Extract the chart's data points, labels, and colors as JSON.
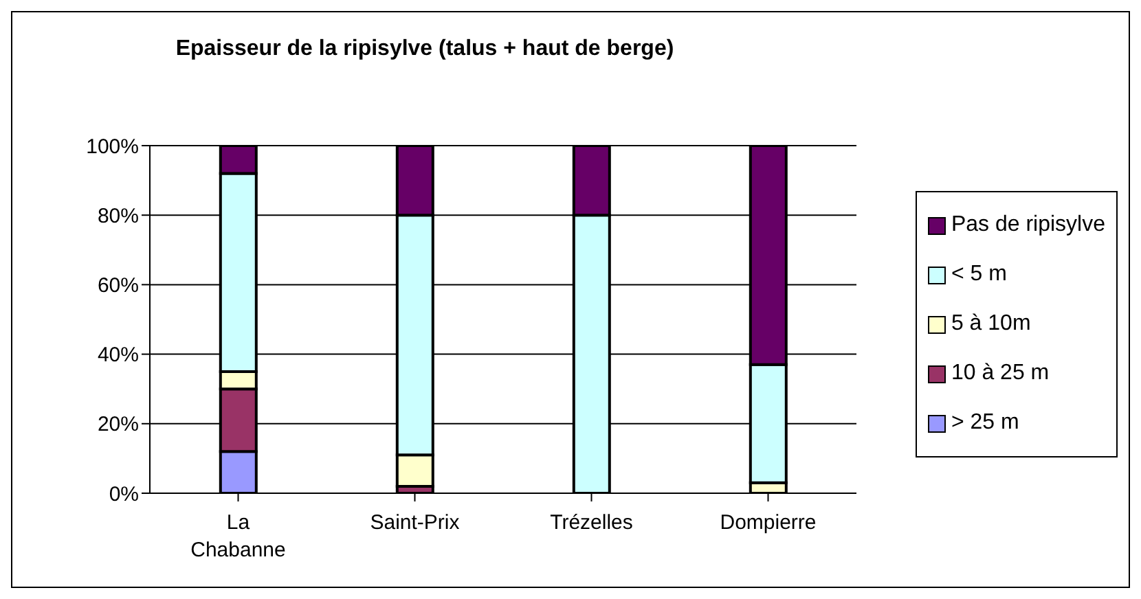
{
  "chart_data": {
    "type": "bar",
    "title": "Epaisseur de la ripisylve (talus + haut de berge)",
    "categories": [
      "La Chabanne",
      "Saint-Prix",
      "Trézelles",
      "Dompierre"
    ],
    "stacked": true,
    "series": [
      {
        "name": "> 25 m",
        "color": "#9999ff",
        "values": [
          12,
          0,
          0,
          0
        ]
      },
      {
        "name": "10 à 25 m",
        "color": "#993366",
        "values": [
          18,
          2,
          0,
          0
        ]
      },
      {
        "name": "5 à 10m",
        "color": "#ffffcc",
        "values": [
          5,
          9,
          0,
          3
        ]
      },
      {
        "name": "< 5 m",
        "color": "#ccffff",
        "values": [
          57,
          69,
          80,
          34
        ]
      },
      {
        "name": "Pas de ripisylve",
        "color": "#660066",
        "values": [
          8,
          20,
          20,
          63
        ]
      }
    ],
    "ylim": [
      0,
      100
    ],
    "yticks": [
      {
        "value": 0,
        "label": "0%"
      },
      {
        "value": 20,
        "label": "20%"
      },
      {
        "value": 40,
        "label": "40%"
      },
      {
        "value": 60,
        "label": "60%"
      },
      {
        "value": 80,
        "label": "80%"
      },
      {
        "value": 100,
        "label": "100%"
      }
    ],
    "grid": "y",
    "legend": "right"
  }
}
